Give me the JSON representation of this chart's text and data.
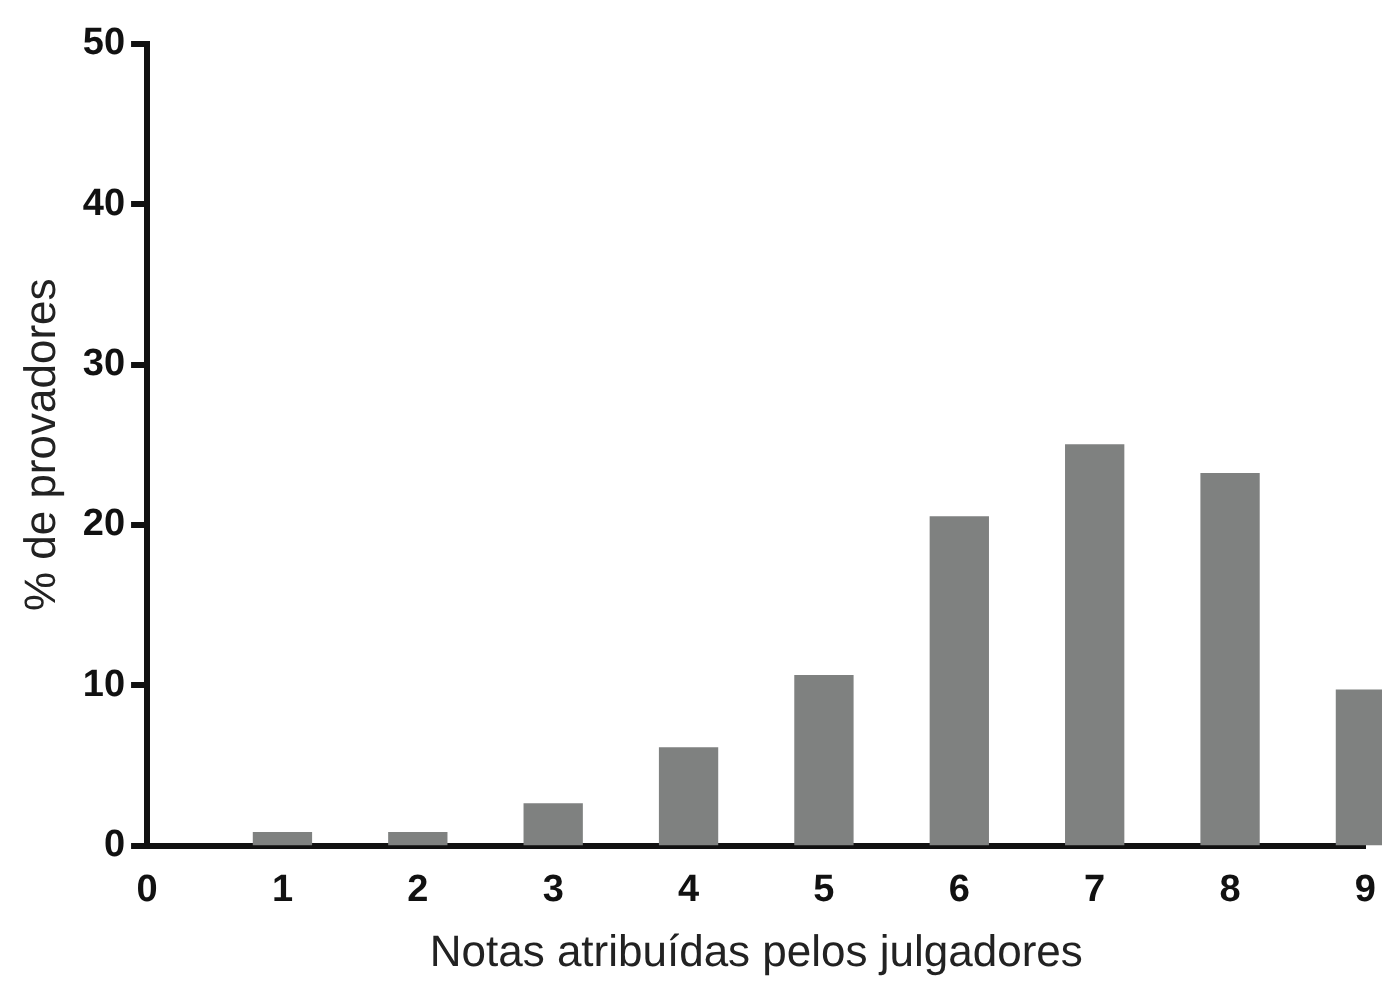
{
  "chart_data": {
    "type": "bar",
    "xlabel": "Notas atribuídas pelos julgadores",
    "ylabel": "% de provadores",
    "x": [
      1,
      2,
      3,
      4,
      5,
      6,
      7,
      8,
      9
    ],
    "values": [
      0.8,
      0.8,
      2.6,
      6.1,
      10.6,
      20.5,
      25.0,
      23.2,
      9.7
    ],
    "color": "#7f8180",
    "xlim": [
      0,
      9
    ],
    "xticks": [
      0,
      1,
      2,
      3,
      4,
      5,
      6,
      7,
      8,
      9
    ],
    "ylim": [
      0,
      50
    ],
    "yticks": [
      0,
      10,
      20,
      30,
      40,
      50
    ],
    "grid": false,
    "legend": false
  }
}
